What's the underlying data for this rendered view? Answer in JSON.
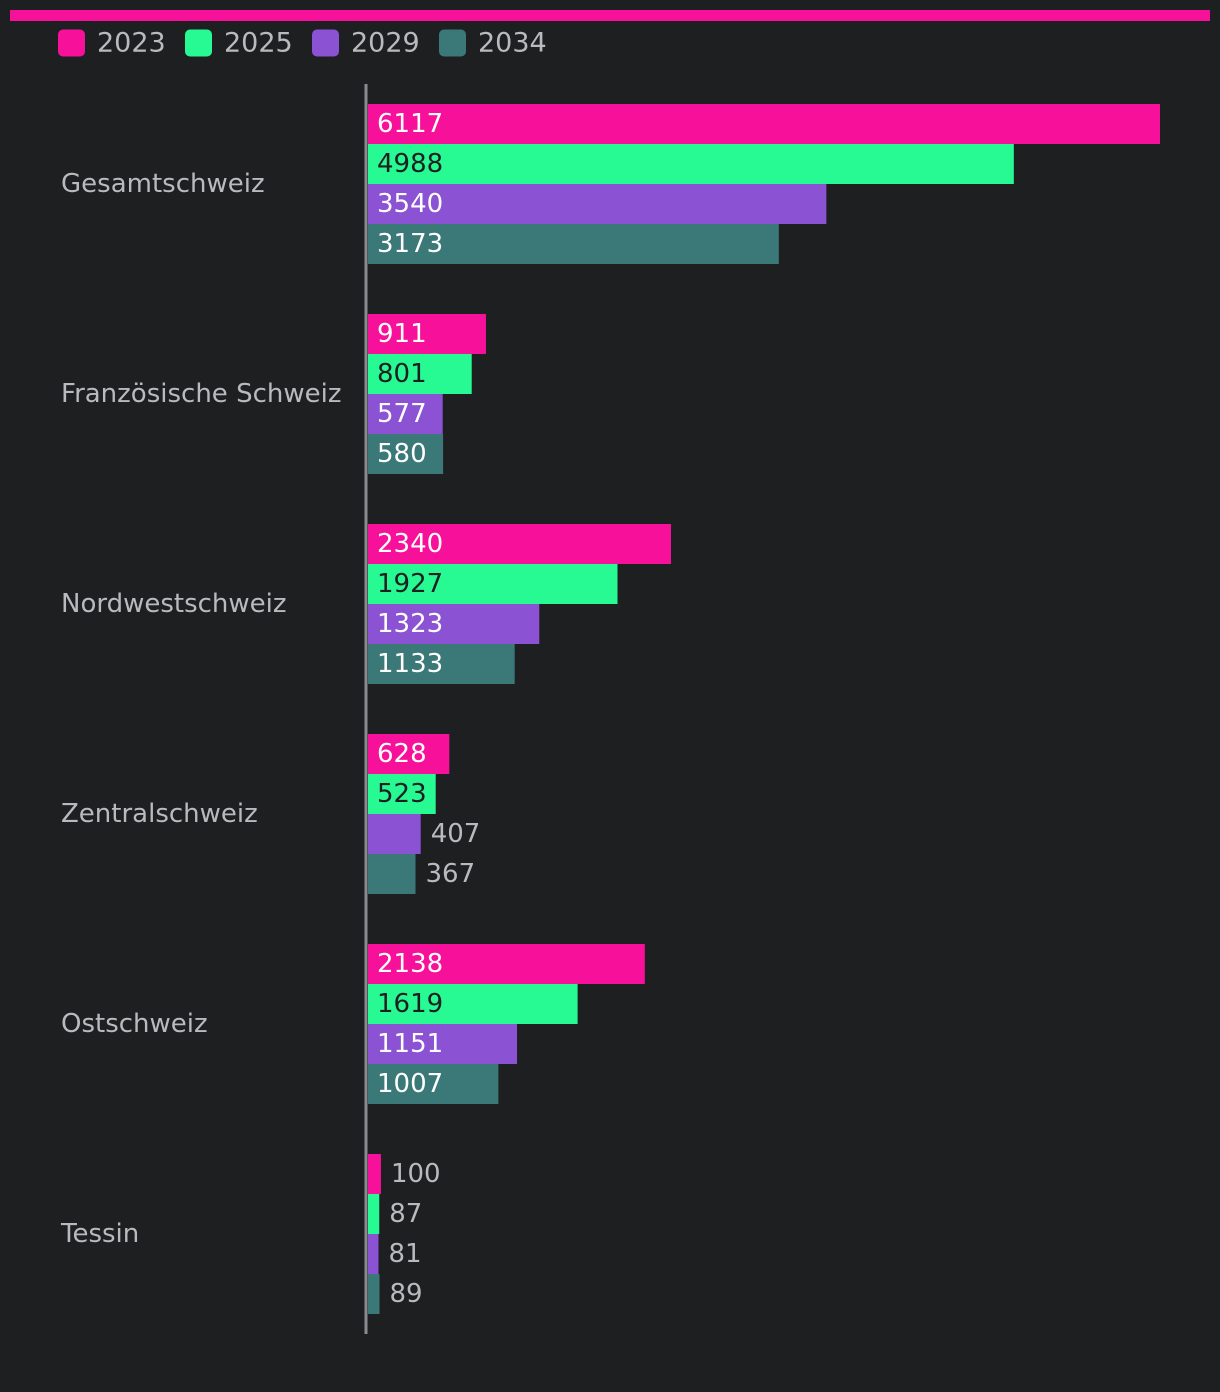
{
  "chart_data": {
    "type": "bar",
    "orientation": "horizontal",
    "categories": [
      "Gesamtschweiz",
      "Französische Schweiz",
      "Nordwestschweiz",
      "Zentralschweiz",
      "Ostschweiz",
      "Tessin"
    ],
    "series": [
      {
        "name": "2023",
        "color": "#f7119a",
        "values": [
          6117,
          911,
          2340,
          628,
          2138,
          100
        ]
      },
      {
        "name": "2025",
        "color": "#27f993",
        "values": [
          4988,
          801,
          1927,
          523,
          1619,
          87
        ]
      },
      {
        "name": "2029",
        "color": "#8b52d3",
        "values": [
          3540,
          577,
          1323,
          407,
          1151,
          81
        ]
      },
      {
        "name": "2034",
        "color": "#3b7878",
        "values": [
          3173,
          580,
          1133,
          367,
          1007,
          89
        ]
      }
    ],
    "title": "",
    "xlabel": "",
    "ylabel": "",
    "xlim": [
      0,
      6117
    ],
    "grid": false,
    "legend": "top-left",
    "data_labels": true
  },
  "colors": {
    "background": "#1e1f21",
    "accent_bar": "#f7119a",
    "axis": "#8a8b8e",
    "text": "#b9babd",
    "label_on_light": "#1e1f21",
    "label_on_dark": "#ffffff"
  }
}
